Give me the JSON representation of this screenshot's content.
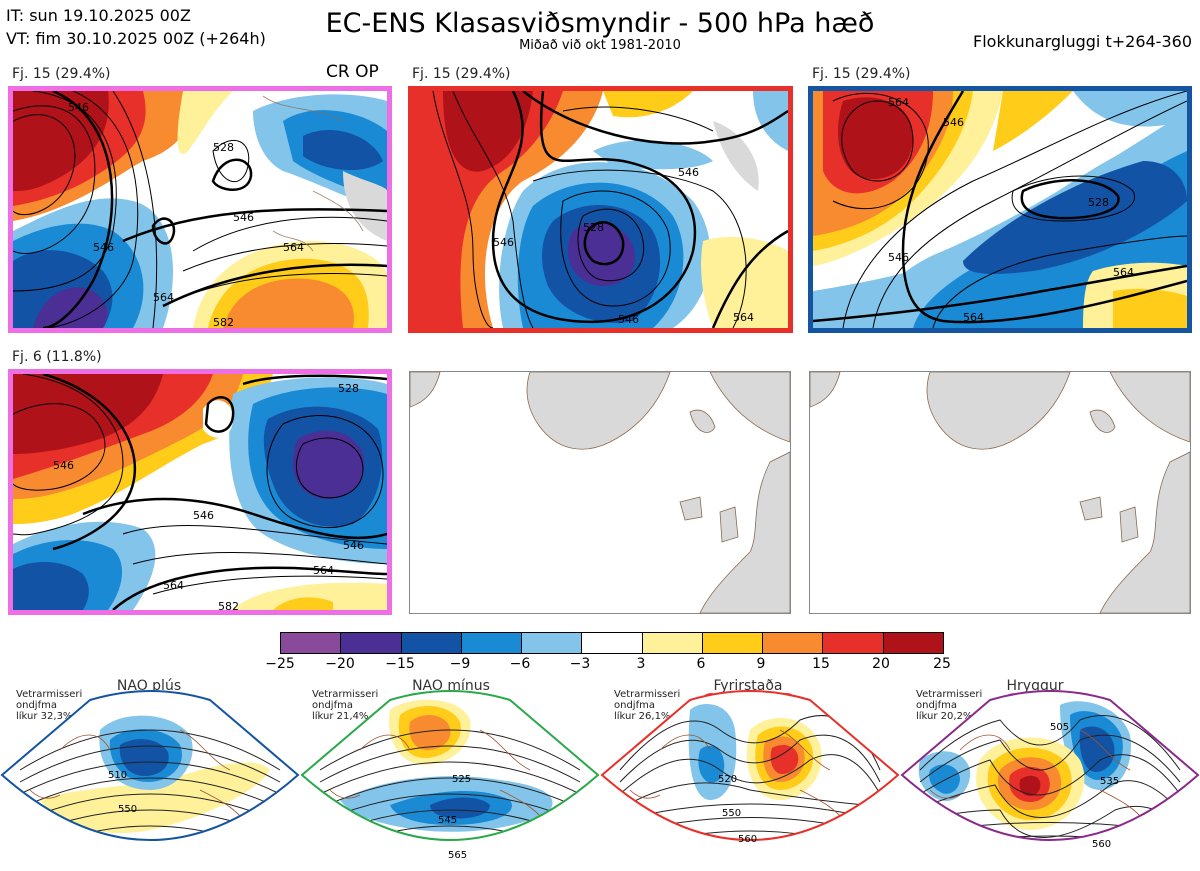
{
  "header": {
    "it": "IT: sun 19.10.2025 00Z",
    "vt": "VT: fim 30.10.2025 00Z  (+264h)",
    "title": "EC-ENS Klasasviðsmyndir - 500 hPa hæð",
    "subtitle": "Miðað við okt 1981-2010",
    "window": "Flokkunargluggi t+264-360"
  },
  "panels": [
    {
      "label": "Fj. 15 (29.4%)",
      "extra": "CR OP",
      "border_color": "#ee6ee6",
      "regime": "Hryggur",
      "contours": [
        "546",
        "528",
        "546",
        "564",
        "546",
        "564",
        "582"
      ]
    },
    {
      "label": "Fj. 15 (29.4%)",
      "border_color": "#e8302a",
      "regime": "Fyrirstaða",
      "contours": [
        "528",
        "546",
        "546",
        "564",
        "546"
      ]
    },
    {
      "label": "Fj. 15 (29.4%)",
      "border_color": "#1454a0",
      "regime": "NAO plús",
      "contours": [
        "564",
        "546",
        "528",
        "546",
        "564",
        "564"
      ]
    },
    {
      "label": "Fj. 6 (11.8%)",
      "border_color": "#ee6ee6",
      "regime": "Hryggur",
      "contours": [
        "528",
        "546",
        "546",
        "564",
        "546",
        "582",
        "564"
      ]
    },
    {
      "label": "",
      "border_color": "#888888",
      "empty": true
    },
    {
      "label": "",
      "border_color": "#888888",
      "empty": true
    }
  ],
  "colorbar": {
    "colors": [
      "#8a4a9c",
      "#4b2f94",
      "#1253a6",
      "#1a8ad4",
      "#82c4ea",
      "#ffffff",
      "#fff09a",
      "#ffcc1a",
      "#f88a30",
      "#e8302a",
      "#b0121a"
    ],
    "labels": [
      "−25",
      "−20",
      "−15",
      "−9",
      "−6",
      "−3",
      "3",
      "6",
      "9",
      "15",
      "20",
      "25"
    ]
  },
  "regimes": [
    {
      "name": "NAO plús",
      "color": "#1454a0",
      "note": [
        "Vetrarmisseri",
        "ondjfma",
        "líkur 32,3%"
      ],
      "labels": [
        "510",
        "550"
      ]
    },
    {
      "name": "NAO mínus",
      "color": "#2aa84a",
      "note": [
        "Vetrarmisseri",
        "ondjfma",
        "líkur 21,4%"
      ],
      "labels": [
        "525",
        "545",
        "565"
      ]
    },
    {
      "name": "Fyrirstaða",
      "color": "#e8302a",
      "note": [
        "Vetrarmisseri",
        "ondjfma",
        "líkur 26,1%"
      ],
      "labels": [
        "520",
        "550",
        "560"
      ]
    },
    {
      "name": "Hryggur",
      "color": "#8a2a8a",
      "dot_color": "#ee6ee6",
      "note": [
        "Vetrarmisseri",
        "ondjfma",
        "líkur 20,2%"
      ],
      "labels": [
        "505",
        "535",
        "560"
      ]
    }
  ]
}
